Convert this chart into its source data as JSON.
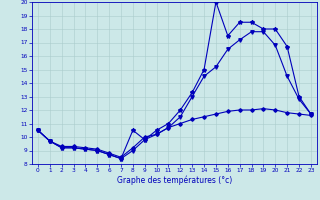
{
  "xlabel": "Graphe des températures (°c)",
  "ylim": [
    8,
    20
  ],
  "xlim": [
    -0.5,
    23.5
  ],
  "yticks": [
    8,
    9,
    10,
    11,
    12,
    13,
    14,
    15,
    16,
    17,
    18,
    19,
    20
  ],
  "xticks": [
    0,
    1,
    2,
    3,
    4,
    5,
    6,
    7,
    8,
    9,
    10,
    11,
    12,
    13,
    14,
    15,
    16,
    17,
    18,
    19,
    20,
    21,
    22,
    23
  ],
  "bg_color": "#cce8e8",
  "line_color": "#0000bb",
  "grid_color": "#aacccc",
  "line1_y": [
    10.5,
    9.7,
    9.2,
    9.2,
    9.1,
    9.0,
    8.7,
    8.4,
    10.5,
    9.8,
    10.5,
    11.0,
    12.0,
    13.3,
    15.0,
    20.0,
    17.5,
    18.5,
    18.5,
    18.0,
    18.0,
    16.7,
    13.0,
    11.7
  ],
  "line2_y": [
    10.5,
    9.7,
    9.2,
    9.2,
    9.1,
    9.0,
    8.7,
    8.4,
    9.0,
    9.8,
    10.2,
    10.7,
    11.5,
    13.0,
    14.5,
    15.2,
    16.5,
    17.2,
    17.8,
    17.8,
    16.8,
    14.5,
    12.8,
    11.7
  ],
  "line3_y": [
    10.5,
    9.7,
    9.3,
    9.3,
    9.2,
    9.1,
    8.8,
    8.5,
    9.2,
    10.0,
    10.2,
    10.7,
    11.0,
    11.3,
    11.5,
    11.7,
    11.9,
    12.0,
    12.0,
    12.1,
    12.0,
    11.8,
    11.7,
    11.6
  ],
  "marker1": "*",
  "marker2": "v",
  "marker3": "D",
  "lw": 0.8,
  "ms1": 3,
  "ms2": 2.5,
  "ms3": 1.8,
  "tick_fontsize": 4.2,
  "xlabel_fontsize": 5.5
}
